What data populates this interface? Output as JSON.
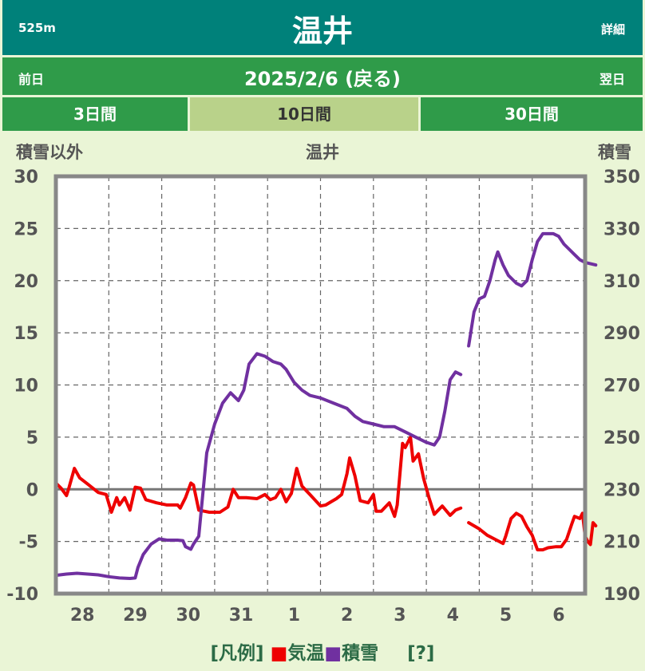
{
  "header": {
    "elevation": "525m",
    "title": "温井",
    "detail_link": "詳細"
  },
  "nav": {
    "prev": "前日",
    "date": "2025/2/6 (戻る)",
    "next": "翌日"
  },
  "tabs": [
    {
      "label": "3日間",
      "active": false
    },
    {
      "label": "10日間",
      "active": true
    },
    {
      "label": "30日間",
      "active": false
    }
  ],
  "legend": {
    "prefix": "[凡例]",
    "temp_marker": "■",
    "temp_label": "気温",
    "snow_marker": "■",
    "snow_label": "積雪",
    "help": "[?]"
  },
  "colors": {
    "header": "#00817a",
    "nav": "#2f9b49",
    "tab_active": "#b9d28a",
    "temp": "#ee0000",
    "snow": "#7030a0"
  },
  "chart_data": {
    "type": "line",
    "title": "温井",
    "y_left_label": "積雪以外",
    "y_right_label": "積雪",
    "y_left_range": [
      -10,
      30
    ],
    "y_right_range": [
      190,
      350
    ],
    "y_left_ticks": [
      "30",
      "25",
      "20",
      "15",
      "10",
      "5",
      "0",
      "-5",
      "-10"
    ],
    "y_right_ticks": [
      "350",
      "330",
      "310",
      "290",
      "270",
      "250",
      "230",
      "210",
      "190"
    ],
    "x_range": [
      0,
      10
    ],
    "x_ticks": [
      {
        "label": "28",
        "x": 0.5
      },
      {
        "label": "29",
        "x": 1.5
      },
      {
        "label": "30",
        "x": 2.5
      },
      {
        "label": "31",
        "x": 3.5
      },
      {
        "label": "1",
        "x": 4.5
      },
      {
        "label": "2",
        "x": 5.5
      },
      {
        "label": "3",
        "x": 6.5
      },
      {
        "label": "4",
        "x": 7.5
      },
      {
        "label": "5",
        "x": 8.5
      },
      {
        "label": "6",
        "x": 9.5
      }
    ],
    "grid": true,
    "series": [
      {
        "name": "気温",
        "axis": "left",
        "color": "#ee0000",
        "segments": [
          [
            [
              0,
              0.6
            ],
            [
              0.1,
              0.1
            ],
            [
              0.2,
              -0.6
            ],
            [
              0.25,
              0.2
            ],
            [
              0.35,
              2
            ],
            [
              0.45,
              1.1
            ],
            [
              0.6,
              0.5
            ],
            [
              0.8,
              -0.3
            ],
            [
              0.95,
              -0.5
            ],
            [
              1.05,
              -2.2
            ],
            [
              1.15,
              -0.8
            ],
            [
              1.2,
              -1.5
            ],
            [
              1.3,
              -0.8
            ],
            [
              1.4,
              -2
            ],
            [
              1.5,
              0.2
            ],
            [
              1.6,
              0.1
            ],
            [
              1.7,
              -1
            ],
            [
              1.9,
              -1.3
            ],
            [
              2.1,
              -1.5
            ],
            [
              2.3,
              -1.5
            ],
            [
              2.35,
              -1.8
            ],
            [
              2.45,
              -0.8
            ],
            [
              2.55,
              0.6
            ],
            [
              2.6,
              0.4
            ],
            [
              2.7,
              -2
            ],
            [
              2.9,
              -2.2
            ],
            [
              3.1,
              -2.2
            ],
            [
              3.25,
              -1.7
            ],
            [
              3.35,
              0
            ],
            [
              3.45,
              -0.8
            ],
            [
              3.6,
              -0.8
            ],
            [
              3.8,
              -0.9
            ],
            [
              3.95,
              -0.5
            ],
            [
              4.05,
              -1
            ],
            [
              4.15,
              -0.8
            ],
            [
              4.25,
              0
            ],
            [
              4.35,
              -1.2
            ],
            [
              4.45,
              -0.4
            ],
            [
              4.55,
              2
            ],
            [
              4.65,
              0.3
            ],
            [
              4.8,
              -0.5
            ],
            [
              5,
              -1.6
            ],
            [
              5.1,
              -1.5
            ],
            [
              5.2,
              -1.2
            ],
            [
              5.3,
              -0.9
            ],
            [
              5.4,
              -0.5
            ],
            [
              5.5,
              1.5
            ],
            [
              5.55,
              3
            ],
            [
              5.65,
              1.3
            ],
            [
              5.75,
              -1.1
            ],
            [
              5.9,
              -1.3
            ],
            [
              6,
              -0.5
            ],
            [
              6.05,
              -2.1
            ],
            [
              6.15,
              -2.1
            ],
            [
              6.3,
              -1.3
            ],
            [
              6.4,
              -2.6
            ],
            [
              6.45,
              -1.5
            ],
            [
              6.55,
              4.4
            ],
            [
              6.6,
              4
            ],
            [
              6.7,
              5
            ],
            [
              6.75,
              2.7
            ],
            [
              6.85,
              3.4
            ],
            [
              6.95,
              1
            ],
            [
              7.05,
              -0.8
            ],
            [
              7.15,
              -2.4
            ],
            [
              7.3,
              -1.6
            ],
            [
              7.45,
              -2.5
            ],
            [
              7.55,
              -2
            ],
            [
              7.65,
              -1.8
            ]
          ],
          [
            [
              7.8,
              -3.2
            ],
            [
              8,
              -3.8
            ],
            [
              8.15,
              -4.4
            ],
            [
              8.3,
              -4.8
            ],
            [
              8.45,
              -5.2
            ],
            [
              8.5,
              -4.5
            ],
            [
              8.6,
              -2.8
            ],
            [
              8.7,
              -2.3
            ],
            [
              8.8,
              -2.6
            ],
            [
              8.9,
              -3.6
            ],
            [
              9,
              -4.4
            ],
            [
              9.1,
              -5.8
            ],
            [
              9.2,
              -5.8
            ],
            [
              9.3,
              -5.6
            ],
            [
              9.45,
              -5.5
            ],
            [
              9.55,
              -5.5
            ],
            [
              9.65,
              -4.8
            ],
            [
              9.75,
              -3.3
            ],
            [
              9.8,
              -2.6
            ],
            [
              9.9,
              -2.8
            ],
            [
              9.95,
              -2.3
            ],
            [
              10,
              -4.5
            ],
            [
              10.05,
              -5
            ],
            [
              10.1,
              -5.3
            ],
            [
              10.15,
              -3.2
            ],
            [
              10.2,
              -3.5
            ]
          ]
        ]
      },
      {
        "name": "積雪",
        "axis": "right",
        "color": "#7030a0",
        "segments": [
          [
            [
              0,
              197
            ],
            [
              0.2,
              197.5
            ],
            [
              0.4,
              197.8
            ],
            [
              0.6,
              197.5
            ],
            [
              0.8,
              197.2
            ],
            [
              1,
              196.5
            ],
            [
              1.2,
              196
            ],
            [
              1.4,
              195.8
            ],
            [
              1.5,
              196
            ],
            [
              1.55,
              200
            ],
            [
              1.65,
              205
            ],
            [
              1.8,
              209
            ],
            [
              1.95,
              211
            ],
            [
              2.1,
              210.5
            ],
            [
              2.3,
              210.5
            ],
            [
              2.4,
              210.3
            ],
            [
              2.45,
              208
            ],
            [
              2.55,
              207
            ],
            [
              2.6,
              209
            ],
            [
              2.7,
              212
            ],
            [
              2.85,
              244
            ],
            [
              3,
              255
            ],
            [
              3.15,
              263
            ],
            [
              3.3,
              267
            ],
            [
              3.45,
              264
            ],
            [
              3.55,
              268
            ],
            [
              3.65,
              278
            ],
            [
              3.8,
              282
            ],
            [
              3.95,
              281
            ],
            [
              4.1,
              279
            ],
            [
              4.25,
              278
            ],
            [
              4.35,
              276
            ],
            [
              4.5,
              271
            ],
            [
              4.65,
              268
            ],
            [
              4.8,
              266
            ],
            [
              5,
              265
            ],
            [
              5.25,
              263
            ],
            [
              5.5,
              261
            ],
            [
              5.65,
              258
            ],
            [
              5.8,
              256
            ],
            [
              6,
              255
            ],
            [
              6.2,
              254
            ],
            [
              6.4,
              254
            ],
            [
              6.6,
              252
            ],
            [
              6.8,
              250
            ],
            [
              7,
              248
            ],
            [
              7.15,
              247
            ],
            [
              7.25,
              250
            ],
            [
              7.35,
              260
            ],
            [
              7.45,
              272
            ],
            [
              7.55,
              275
            ],
            [
              7.65,
              274
            ]
          ],
          [
            [
              7.8,
              285
            ],
            [
              7.9,
              298
            ],
            [
              8,
              303
            ],
            [
              8.1,
              304
            ],
            [
              8.2,
              310
            ],
            [
              8.3,
              318
            ],
            [
              8.35,
              321
            ],
            [
              8.45,
              316
            ],
            [
              8.55,
              312
            ],
            [
              8.7,
              309
            ],
            [
              8.8,
              308
            ],
            [
              8.9,
              310
            ],
            [
              9,
              318
            ],
            [
              9.1,
              325
            ],
            [
              9.2,
              328
            ],
            [
              9.4,
              328
            ],
            [
              9.5,
              327
            ],
            [
              9.6,
              324
            ],
            [
              9.7,
              322
            ],
            [
              9.8,
              320
            ],
            [
              9.9,
              318
            ],
            [
              10,
              317
            ],
            [
              10.2,
              316
            ]
          ]
        ]
      }
    ]
  }
}
